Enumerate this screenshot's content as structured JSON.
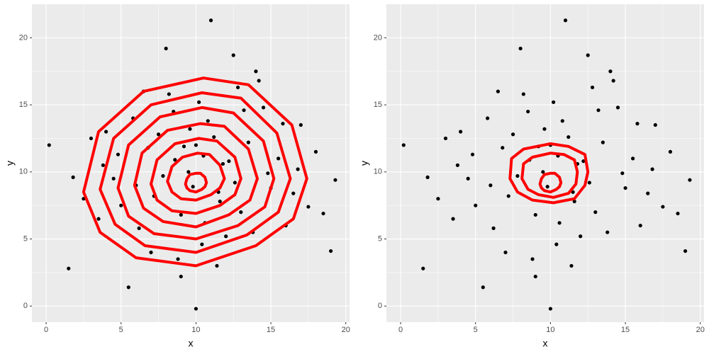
{
  "chart_data": [
    {
      "type": "scatter",
      "x_label": "x",
      "y_label": "y",
      "xlim": [
        -0.95,
        20.25
      ],
      "ylim": [
        -1.2,
        22.5
      ],
      "xticks": [
        0,
        5,
        10,
        15,
        20
      ],
      "yticks": [
        0,
        5,
        10,
        15,
        20
      ],
      "minor_xticks": [
        2.5,
        7.5,
        12.5,
        17.5
      ],
      "minor_yticks": [
        2.5,
        7.5,
        12.5,
        17.5
      ],
      "grid": true,
      "point_color": "#000000",
      "contour_color": "#ff0000",
      "x": [
        11.0,
        10.0,
        0.2,
        19.0,
        19.3,
        1.5,
        5.5,
        8.0,
        12.5,
        14.0,
        6.5,
        3.0,
        17.0,
        9.5,
        10.5,
        11.5,
        7.5,
        13.0,
        15.5,
        4.5,
        8.5,
        12.0,
        9.0,
        10.8,
        6.0,
        14.5,
        16.0,
        2.5,
        18.0,
        7.0,
        11.8,
        9.8,
        10.2,
        13.5,
        5.0,
        8.8,
        12.8,
        15.0,
        4.0,
        16.8,
        9.2,
        10.6,
        7.8,
        11.2,
        13.8,
        6.8,
        3.5,
        17.5,
        12.2,
        8.2,
        10.4,
        9.6,
        14.8,
        5.8,
        11.6,
        7.2,
        13.2,
        4.8,
        15.8,
        9.0,
        1.8,
        18.5,
        6.2,
        12.6,
        8.6,
        11.4,
        10.0,
        16.5,
        3.8,
        14.2
      ],
      "y": [
        21.3,
        -0.2,
        12.0,
        4.1,
        9.4,
        2.8,
        1.4,
        19.2,
        18.7,
        17.5,
        16.0,
        12.5,
        13.5,
        10.0,
        11.2,
        8.5,
        12.8,
        7.0,
        11.0,
        9.5,
        14.5,
        5.2,
        6.8,
        13.8,
        9.0,
        14.8,
        6.0,
        8.0,
        11.5,
        4.0,
        10.6,
        8.9,
        15.2,
        12.2,
        7.5,
        3.5,
        16.3,
        8.8,
        13.0,
        10.2,
        11.9,
        6.2,
        9.7,
        12.6,
        5.5,
        11.8,
        6.5,
        7.4,
        10.8,
        15.8,
        4.6,
        13.2,
        9.9,
        14.0,
        7.8,
        8.2,
        14.6,
        11.3,
        13.6,
        2.2,
        9.6,
        6.9,
        5.8,
        9.2,
        10.9,
        3.0,
        12.0,
        8.4,
        10.5,
        16.8
      ],
      "contours": [
        {
          "x": [
            17.4,
            16.4,
            13.5,
            10.5,
            6.5,
            3.5,
            2.5,
            3.6,
            6.0,
            10.0,
            14.0,
            16.5
          ],
          "y": [
            9.5,
            13.5,
            16.5,
            17.0,
            16.0,
            13.0,
            8.5,
            5.5,
            3.6,
            3.0,
            4.5,
            6.5
          ]
        },
        {
          "x": [
            16.3,
            15.4,
            13.0,
            10.4,
            7.0,
            4.5,
            3.6,
            4.6,
            6.6,
            10.0,
            13.4,
            15.5
          ],
          "y": [
            9.5,
            12.9,
            15.5,
            15.9,
            15.0,
            12.5,
            8.7,
            6.1,
            4.5,
            4.0,
            5.3,
            7.0
          ]
        },
        {
          "x": [
            15.2,
            14.5,
            12.5,
            10.4,
            7.6,
            5.5,
            4.8,
            5.5,
            7.2,
            10.0,
            12.8,
            14.6
          ],
          "y": [
            9.5,
            12.3,
            14.4,
            14.8,
            14.1,
            12.0,
            8.8,
            6.7,
            5.4,
            5.0,
            6.0,
            7.4
          ]
        },
        {
          "x": [
            14.1,
            13.5,
            11.9,
            10.3,
            8.1,
            6.4,
            5.9,
            6.5,
            7.8,
            10.0,
            12.2,
            13.6
          ],
          "y": [
            9.5,
            11.7,
            13.4,
            13.6,
            13.1,
            11.4,
            9.0,
            7.3,
            6.3,
            5.9,
            6.8,
            7.9
          ]
        },
        {
          "x": [
            13.0,
            12.6,
            11.4,
            10.2,
            8.6,
            7.4,
            7.0,
            7.4,
            8.4,
            10.0,
            11.6,
            12.6
          ],
          "y": [
            9.5,
            11.1,
            12.3,
            12.5,
            12.1,
            10.9,
            9.1,
            7.9,
            7.1,
            6.9,
            7.5,
            8.3
          ]
        },
        {
          "x": [
            11.9,
            11.6,
            10.9,
            10.1,
            9.1,
            8.4,
            8.1,
            8.4,
            9.0,
            10.0,
            11.0,
            11.6
          ],
          "y": [
            9.5,
            10.5,
            11.3,
            11.4,
            11.1,
            10.4,
            9.3,
            8.5,
            8.0,
            7.9,
            8.3,
            8.8
          ]
        },
        {
          "x": [
            10.7,
            10.6,
            10.3,
            10.0,
            9.6,
            9.4,
            9.3,
            9.4,
            9.6,
            10.0,
            10.4,
            10.6
          ],
          "y": [
            9.2,
            9.6,
            9.9,
            9.9,
            9.8,
            9.5,
            9.1,
            8.8,
            8.6,
            8.5,
            8.7,
            8.9
          ]
        }
      ]
    },
    {
      "type": "scatter",
      "x_label": "x",
      "y_label": "y",
      "xlim": [
        -0.95,
        20.25
      ],
      "ylim": [
        -1.2,
        22.5
      ],
      "xticks": [
        0,
        5,
        10,
        15,
        20
      ],
      "yticks": [
        0,
        5,
        10,
        15,
        20
      ],
      "minor_xticks": [
        2.5,
        7.5,
        12.5,
        17.5
      ],
      "minor_yticks": [
        2.5,
        7.5,
        12.5,
        17.5
      ],
      "grid": true,
      "point_color": "#000000",
      "contour_color": "#ff0000",
      "x": [
        11.0,
        10.0,
        0.2,
        19.0,
        19.3,
        1.5,
        5.5,
        8.0,
        12.5,
        14.0,
        6.5,
        3.0,
        17.0,
        9.5,
        10.5,
        11.5,
        7.5,
        13.0,
        15.5,
        4.5,
        8.5,
        12.0,
        9.0,
        10.8,
        6.0,
        14.5,
        16.0,
        2.5,
        18.0,
        7.0,
        11.8,
        9.8,
        10.2,
        13.5,
        5.0,
        8.8,
        12.8,
        15.0,
        4.0,
        16.8,
        9.2,
        10.6,
        7.8,
        11.2,
        13.8,
        6.8,
        3.5,
        17.5,
        12.2,
        8.2,
        10.4,
        9.6,
        14.8,
        5.8,
        11.6,
        7.2,
        13.2,
        4.8,
        15.8,
        9.0,
        1.8,
        18.5,
        6.2,
        12.6,
        8.6,
        11.4,
        10.0,
        16.5,
        3.8,
        14.2
      ],
      "y": [
        21.3,
        -0.2,
        12.0,
        4.1,
        9.4,
        2.8,
        1.4,
        19.2,
        18.7,
        17.5,
        16.0,
        12.5,
        13.5,
        10.0,
        11.2,
        8.5,
        12.8,
        7.0,
        11.0,
        9.5,
        14.5,
        5.2,
        6.8,
        13.8,
        9.0,
        14.8,
        6.0,
        8.0,
        11.5,
        4.0,
        10.6,
        8.9,
        15.2,
        12.2,
        7.5,
        3.5,
        16.3,
        8.8,
        13.0,
        10.2,
        11.9,
        6.2,
        9.7,
        12.6,
        5.5,
        11.8,
        6.5,
        7.4,
        10.8,
        15.8,
        4.6,
        13.2,
        9.9,
        14.0,
        7.8,
        8.2,
        14.6,
        11.3,
        13.6,
        2.2,
        9.6,
        6.9,
        5.8,
        9.2,
        10.9,
        3.0,
        12.0,
        8.4,
        10.5,
        16.8
      ],
      "contours": [
        {
          "x": [
            12.5,
            12.3,
            11.2,
            10.0,
            8.2,
            7.4,
            7.3,
            7.8,
            8.8,
            10.2,
            11.6,
            12.3
          ],
          "y": [
            10.0,
            11.3,
            11.9,
            12.1,
            11.7,
            11.0,
            9.5,
            8.5,
            7.9,
            7.7,
            8.0,
            9.0
          ]
        },
        {
          "x": [
            11.8,
            11.6,
            10.9,
            10.0,
            8.8,
            8.2,
            8.1,
            8.5,
            9.2,
            10.2,
            11.2,
            11.7
          ],
          "y": [
            10.0,
            10.9,
            11.3,
            11.4,
            11.1,
            10.6,
            9.5,
            8.7,
            8.3,
            8.1,
            8.4,
            9.1
          ]
        },
        {
          "x": [
            10.7,
            10.6,
            10.3,
            10.0,
            9.6,
            9.4,
            9.3,
            9.4,
            9.6,
            10.0,
            10.4,
            10.6
          ],
          "y": [
            9.2,
            9.6,
            9.9,
            9.9,
            9.8,
            9.5,
            9.1,
            8.8,
            8.6,
            8.5,
            8.7,
            8.9
          ]
        }
      ]
    }
  ]
}
